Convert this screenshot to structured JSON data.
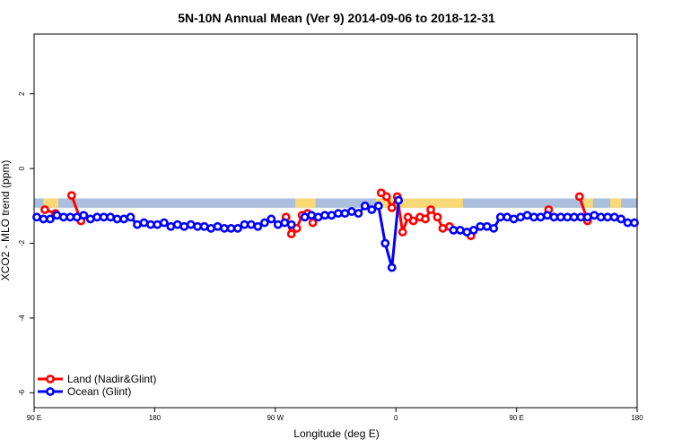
{
  "chart_data": {
    "type": "line",
    "title": "5N-10N Annual Mean (Ver 9)   2014-09-06 to 2018-12-31",
    "xlabel": "Longitude (deg E)",
    "ylabel": "XCO2 - MLO trend (ppm)",
    "x_ticks": [
      {
        "value": 90,
        "label": "90 E"
      },
      {
        "value": 180,
        "label": "180"
      },
      {
        "value": 270,
        "label": "90 W"
      },
      {
        "value": 360,
        "label": "0"
      },
      {
        "value": 450,
        "label": "90 E"
      },
      {
        "value": 540,
        "label": "180"
      }
    ],
    "y_ticks": [
      2,
      0,
      -2,
      -4,
      -6
    ],
    "xlim": [
      90,
      540
    ],
    "ylim": [
      -6.4,
      3.6
    ],
    "legend_position": "bottom-left",
    "land_band": {
      "y_range": [
        -1.05,
        -0.8
      ],
      "ocean_color": "#a9bfdc",
      "land_color": "#f9d977",
      "land_segments": [
        [
          97,
          108
        ],
        [
          285,
          300
        ],
        [
          345,
          410
        ],
        [
          500,
          507
        ],
        [
          520,
          528
        ]
      ]
    },
    "series": [
      {
        "name": "Land (Nadir&Glint)",
        "color": "#ff0000",
        "points": [
          [
            98,
            -1.1
          ],
          [
            106,
            -1.2
          ],
          [
            118,
            -0.72
          ],
          [
            125,
            -1.4
          ],
          [
            278,
            -1.3
          ],
          [
            282,
            -1.75
          ],
          [
            286,
            -1.6
          ],
          [
            290,
            -1.25
          ],
          [
            294,
            -1.2
          ],
          [
            298,
            -1.45
          ],
          [
            349,
            -0.65
          ],
          [
            353,
            -0.75
          ],
          [
            357,
            -1.05
          ],
          [
            361,
            -0.75
          ],
          [
            365,
            -1.7
          ],
          [
            369,
            -1.3
          ],
          [
            373,
            -1.4
          ],
          [
            378,
            -1.3
          ],
          [
            382,
            -1.35
          ],
          [
            386,
            -1.1
          ],
          [
            391,
            -1.3
          ],
          [
            395,
            -1.6
          ],
          [
            400,
            -1.55
          ],
          [
            416,
            -1.8
          ],
          [
            474,
            -1.1
          ],
          [
            497,
            -0.75
          ],
          [
            503,
            -1.4
          ]
        ]
      },
      {
        "name": "Ocean (Glint)",
        "color": "#0000ff",
        "points": [
          [
            92,
            -1.3
          ],
          [
            97,
            -1.35
          ],
          [
            102,
            -1.35
          ],
          [
            107,
            -1.25
          ],
          [
            112,
            -1.3
          ],
          [
            117,
            -1.3
          ],
          [
            122,
            -1.3
          ],
          [
            127,
            -1.25
          ],
          [
            132,
            -1.35
          ],
          [
            137,
            -1.3
          ],
          [
            142,
            -1.3
          ],
          [
            147,
            -1.3
          ],
          [
            152,
            -1.35
          ],
          [
            157,
            -1.35
          ],
          [
            162,
            -1.3
          ],
          [
            167,
            -1.5
          ],
          [
            172,
            -1.45
          ],
          [
            177,
            -1.5
          ],
          [
            182,
            -1.5
          ],
          [
            187,
            -1.45
          ],
          [
            192,
            -1.55
          ],
          [
            197,
            -1.5
          ],
          [
            202,
            -1.55
          ],
          [
            207,
            -1.5
          ],
          [
            212,
            -1.55
          ],
          [
            217,
            -1.55
          ],
          [
            222,
            -1.6
          ],
          [
            227,
            -1.55
          ],
          [
            232,
            -1.6
          ],
          [
            237,
            -1.6
          ],
          [
            242,
            -1.6
          ],
          [
            247,
            -1.5
          ],
          [
            252,
            -1.5
          ],
          [
            257,
            -1.55
          ],
          [
            262,
            -1.45
          ],
          [
            267,
            -1.35
          ],
          [
            272,
            -1.5
          ],
          [
            277,
            -1.45
          ],
          [
            282,
            -1.5
          ],
          [
            292,
            -1.3
          ],
          [
            297,
            -1.25
          ],
          [
            302,
            -1.3
          ],
          [
            307,
            -1.25
          ],
          [
            312,
            -1.25
          ],
          [
            317,
            -1.2
          ],
          [
            322,
            -1.2
          ],
          [
            327,
            -1.15
          ],
          [
            332,
            -1.2
          ],
          [
            337,
            -1.0
          ],
          [
            342,
            -1.1
          ],
          [
            347,
            -1.0
          ],
          [
            352,
            -2.0
          ],
          [
            357,
            -2.65
          ],
          [
            362,
            -0.85
          ],
          [
            403,
            -1.65
          ],
          [
            408,
            -1.65
          ],
          [
            413,
            -1.7
          ],
          [
            418,
            -1.65
          ],
          [
            423,
            -1.55
          ],
          [
            428,
            -1.55
          ],
          [
            433,
            -1.6
          ],
          [
            438,
            -1.3
          ],
          [
            443,
            -1.3
          ],
          [
            448,
            -1.35
          ],
          [
            453,
            -1.3
          ],
          [
            458,
            -1.25
          ],
          [
            463,
            -1.3
          ],
          [
            468,
            -1.3
          ],
          [
            473,
            -1.25
          ],
          [
            478,
            -1.3
          ],
          [
            483,
            -1.3
          ],
          [
            488,
            -1.3
          ],
          [
            493,
            -1.3
          ],
          [
            498,
            -1.3
          ],
          [
            503,
            -1.3
          ],
          [
            508,
            -1.25
          ],
          [
            513,
            -1.3
          ],
          [
            518,
            -1.3
          ],
          [
            523,
            -1.3
          ],
          [
            528,
            -1.35
          ],
          [
            533,
            -1.45
          ],
          [
            538,
            -1.45
          ]
        ]
      }
    ]
  }
}
